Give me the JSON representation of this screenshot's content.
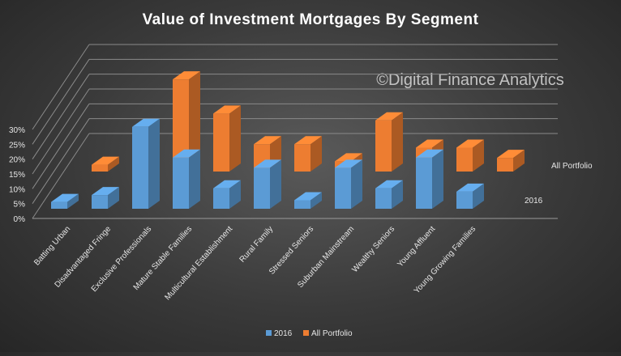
{
  "chart_data": {
    "type": "bar",
    "subtype": "3d-column",
    "title": "Value of Investment Mortgages By Segment",
    "watermark": "©Digital Finance Analytics",
    "categories": [
      "Batting Urban",
      "Disadvantaged Fringe",
      "Exclusive Professionals",
      "Mature Stable Families",
      "Multicultural Establishment",
      "Rural Family",
      "Stressed Seniors",
      "Suburban Mainstream",
      "Wealthy Seniors",
      "Young Affluent",
      "Young Growing Families"
    ],
    "series": [
      {
        "name": "2016",
        "color": "#5b9bd5",
        "values": [
          2,
          4,
          24,
          15,
          6,
          12,
          2.5,
          12,
          6,
          15,
          5
        ]
      },
      {
        "name": "All Portfolio",
        "color": "#ed7d31",
        "values": [
          2,
          4,
          27,
          17,
          8,
          8,
          3,
          15,
          7,
          7,
          4
        ]
      }
    ],
    "y_ticks": [
      "0%",
      "5%",
      "10%",
      "15%",
      "20%",
      "25%",
      "30%"
    ],
    "ylim": [
      0,
      30
    ],
    "grid": true,
    "legend_position": "bottom",
    "depth_labels": [
      "All Portfolio",
      "2016"
    ]
  }
}
